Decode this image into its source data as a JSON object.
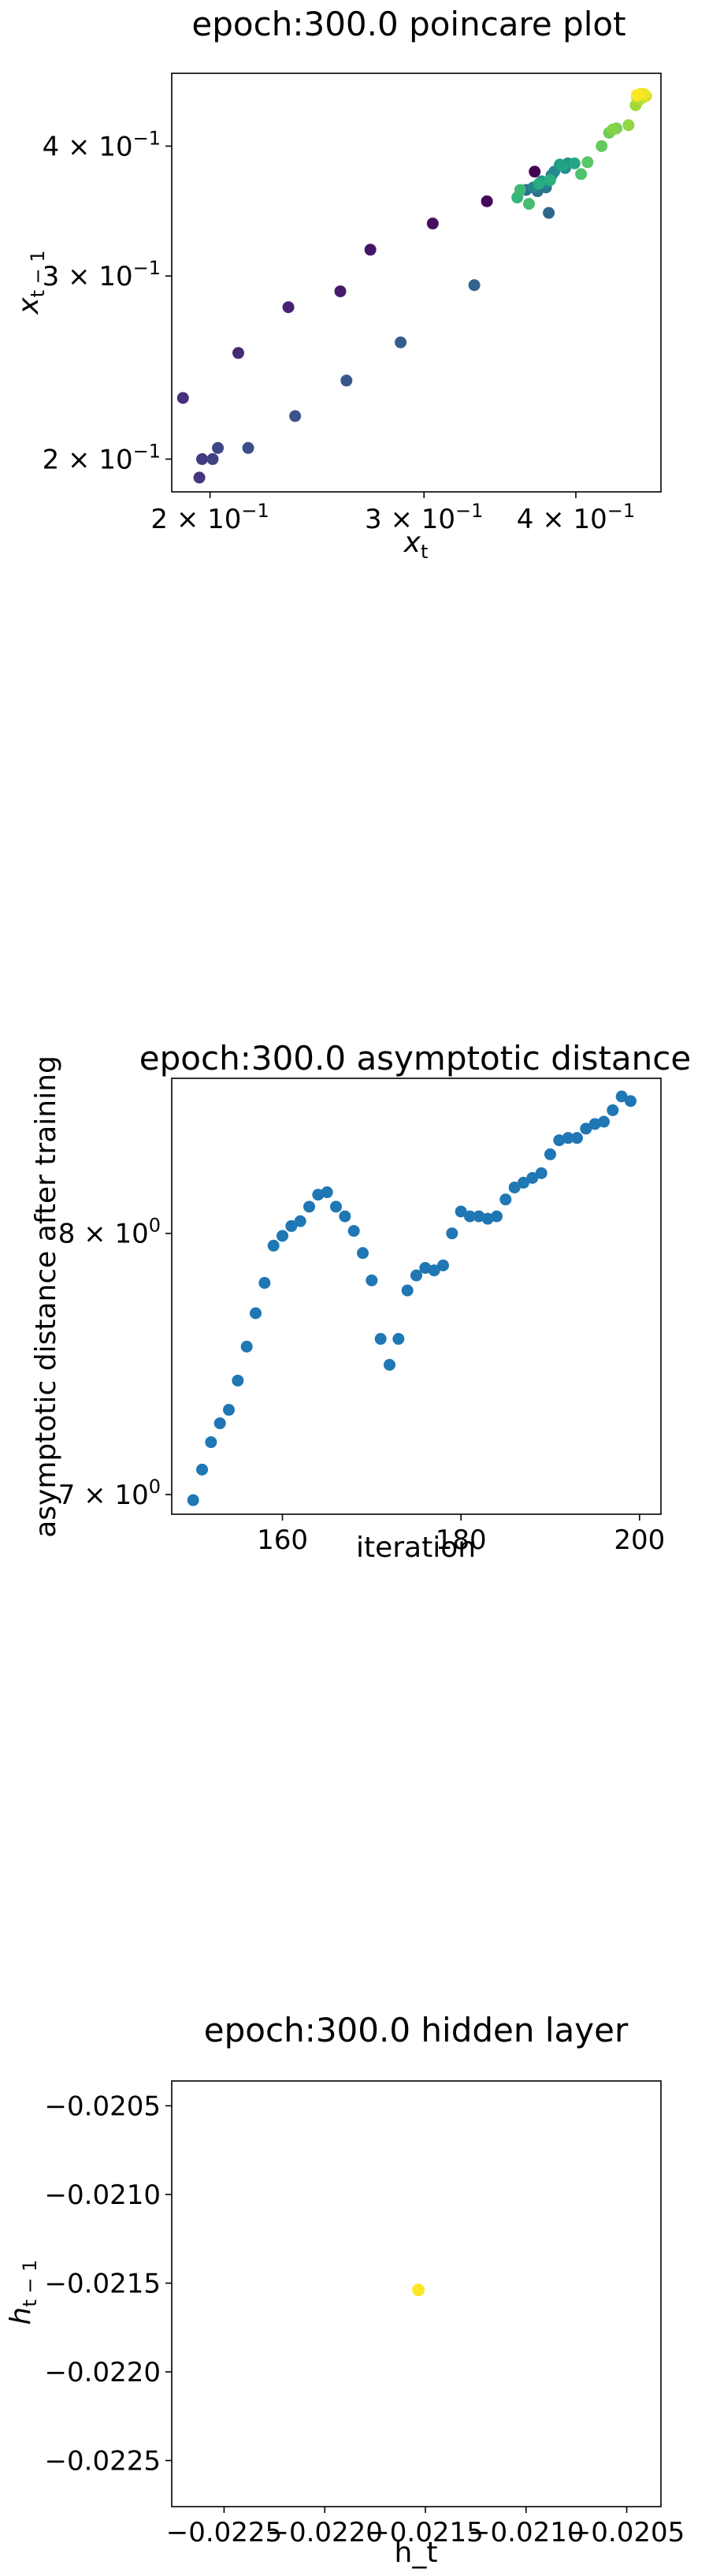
{
  "chart_data": [
    {
      "type": "scatter",
      "title": "epoch:300.0 poincare plot",
      "xlabel_base": "x",
      "xlabel_sub": "t",
      "ylabel_base": "x",
      "ylabel_sub": "t − 1",
      "xscale": "log",
      "yscale": "log",
      "xlim": [
        0.186,
        0.47
      ],
      "ylim": [
        0.186,
        0.47
      ],
      "grid": false,
      "colormap": "viridis",
      "x_ticks": [
        {
          "value": 0.2,
          "mantissa": "2",
          "base": "10",
          "exp": "−1"
        },
        {
          "value": 0.3,
          "mantissa": "3",
          "base": "10",
          "exp": "−1"
        },
        {
          "value": 0.4,
          "mantissa": "4",
          "base": "10",
          "exp": "−1"
        }
      ],
      "y_ticks": [
        {
          "value": 0.2,
          "mantissa": "2",
          "base": "10",
          "exp": "−1"
        },
        {
          "value": 0.3,
          "mantissa": "3",
          "base": "10",
          "exp": "−1"
        },
        {
          "value": 0.4,
          "mantissa": "4",
          "base": "10",
          "exp": "−1"
        }
      ],
      "points": [
        {
          "x": 0.37,
          "y": 0.378,
          "c": 0.0
        },
        {
          "x": 0.338,
          "y": 0.354,
          "c": 0.02
        },
        {
          "x": 0.305,
          "y": 0.337,
          "c": 0.04
        },
        {
          "x": 0.271,
          "y": 0.318,
          "c": 0.06
        },
        {
          "x": 0.256,
          "y": 0.29,
          "c": 0.08
        },
        {
          "x": 0.232,
          "y": 0.28,
          "c": 0.1
        },
        {
          "x": 0.211,
          "y": 0.253,
          "c": 0.12
        },
        {
          "x": 0.19,
          "y": 0.229,
          "c": 0.14
        },
        {
          "x": 0.196,
          "y": 0.192,
          "c": 0.16
        },
        {
          "x": 0.197,
          "y": 0.2,
          "c": 0.18
        },
        {
          "x": 0.201,
          "y": 0.2,
          "c": 0.2
        },
        {
          "x": 0.203,
          "y": 0.205,
          "c": 0.22
        },
        {
          "x": 0.215,
          "y": 0.205,
          "c": 0.24
        },
        {
          "x": 0.235,
          "y": 0.22,
          "c": 0.26
        },
        {
          "x": 0.259,
          "y": 0.238,
          "c": 0.28
        },
        {
          "x": 0.287,
          "y": 0.259,
          "c": 0.3
        },
        {
          "x": 0.33,
          "y": 0.294,
          "c": 0.32
        },
        {
          "x": 0.38,
          "y": 0.345,
          "c": 0.34
        },
        {
          "x": 0.364,
          "y": 0.363,
          "c": 0.36
        },
        {
          "x": 0.372,
          "y": 0.362,
          "c": 0.38
        },
        {
          "x": 0.378,
          "y": 0.365,
          "c": 0.4
        },
        {
          "x": 0.382,
          "y": 0.375,
          "c": 0.42
        },
        {
          "x": 0.377,
          "y": 0.369,
          "c": 0.44
        },
        {
          "x": 0.369,
          "y": 0.365,
          "c": 0.46
        },
        {
          "x": 0.384,
          "y": 0.378,
          "c": 0.48
        },
        {
          "x": 0.392,
          "y": 0.381,
          "c": 0.5
        },
        {
          "x": 0.394,
          "y": 0.385,
          "c": 0.52
        },
        {
          "x": 0.375,
          "y": 0.37,
          "c": 0.54
        },
        {
          "x": 0.388,
          "y": 0.384,
          "c": 0.56
        },
        {
          "x": 0.39,
          "y": 0.383,
          "c": 0.58
        },
        {
          "x": 0.399,
          "y": 0.385,
          "c": 0.6
        },
        {
          "x": 0.373,
          "y": 0.368,
          "c": 0.62
        },
        {
          "x": 0.381,
          "y": 0.371,
          "c": 0.64
        },
        {
          "x": 0.358,
          "y": 0.357,
          "c": 0.66
        },
        {
          "x": 0.36,
          "y": 0.363,
          "c": 0.68
        },
        {
          "x": 0.366,
          "y": 0.352,
          "c": 0.7
        },
        {
          "x": 0.404,
          "y": 0.376,
          "c": 0.72
        },
        {
          "x": 0.409,
          "y": 0.386,
          "c": 0.74
        },
        {
          "x": 0.42,
          "y": 0.4,
          "c": 0.76
        },
        {
          "x": 0.426,
          "y": 0.412,
          "c": 0.78
        },
        {
          "x": 0.432,
          "y": 0.416,
          "c": 0.8
        },
        {
          "x": 0.429,
          "y": 0.415,
          "c": 0.82
        },
        {
          "x": 0.442,
          "y": 0.419,
          "c": 0.84
        },
        {
          "x": 0.448,
          "y": 0.438,
          "c": 0.86
        },
        {
          "x": 0.451,
          "y": 0.443,
          "c": 0.88
        },
        {
          "x": 0.455,
          "y": 0.446,
          "c": 0.9
        },
        {
          "x": 0.449,
          "y": 0.446,
          "c": 0.92
        },
        {
          "x": 0.457,
          "y": 0.447,
          "c": 0.94
        },
        {
          "x": 0.452,
          "y": 0.449,
          "c": 0.96
        },
        {
          "x": 0.455,
          "y": 0.449,
          "c": 0.98
        },
        {
          "x": 0.449,
          "y": 0.448,
          "c": 1.0
        }
      ]
    },
    {
      "type": "scatter",
      "title": "epoch:300.0 asymptotic distance",
      "xlabel": "iteration",
      "ylabel": "asymptotic distance after training",
      "yscale": "log",
      "xlim": [
        147.6,
        202.4
      ],
      "ylim": [
        6.93,
        8.66
      ],
      "grid": false,
      "marker_color": "#1f77b4",
      "x_ticks": [
        {
          "value": 160,
          "label": "160"
        },
        {
          "value": 180,
          "label": "180"
        },
        {
          "value": 200,
          "label": "200"
        }
      ],
      "y_ticks": [
        {
          "value": 7,
          "mantissa": "7",
          "base": "10",
          "exp": "0"
        },
        {
          "value": 8,
          "mantissa": "8",
          "base": "10",
          "exp": "0"
        }
      ],
      "x": [
        150,
        151,
        152,
        153,
        154,
        155,
        156,
        157,
        158,
        159,
        160,
        161,
        162,
        163,
        164,
        165,
        166,
        167,
        168,
        169,
        170,
        171,
        172,
        173,
        174,
        175,
        176,
        177,
        178,
        179,
        180,
        181,
        182,
        183,
        184,
        185,
        186,
        187,
        188,
        189,
        190,
        191,
        192,
        193,
        194,
        195,
        196,
        197,
        198,
        199
      ],
      "y": [
        6.98,
        7.09,
        7.19,
        7.26,
        7.31,
        7.42,
        7.55,
        7.68,
        7.8,
        7.95,
        7.99,
        8.03,
        8.05,
        8.11,
        8.16,
        8.17,
        8.11,
        8.07,
        8.01,
        7.92,
        7.81,
        7.58,
        7.48,
        7.58,
        7.77,
        7.83,
        7.86,
        7.85,
        7.87,
        8.0,
        8.09,
        8.07,
        8.07,
        8.06,
        8.07,
        8.14,
        8.19,
        8.21,
        8.23,
        8.25,
        8.33,
        8.39,
        8.4,
        8.4,
        8.44,
        8.46,
        8.47,
        8.52,
        8.58,
        8.56
      ]
    },
    {
      "type": "scatter",
      "title": "epoch:300.0 hidden layer",
      "xlabel": "h_t",
      "ylabel_base": "h",
      "ylabel_sub": "t − 1",
      "xlim": [
        -0.02276,
        -0.02033
      ],
      "ylim": [
        -0.02276,
        -0.02036
      ],
      "grid": false,
      "x_ticks": [
        {
          "value": -0.0225,
          "label": "−0.0225"
        },
        {
          "value": -0.022,
          "label": "−0.0220"
        },
        {
          "value": -0.0215,
          "label": "−0.0215"
        },
        {
          "value": -0.021,
          "label": "−0.0210"
        },
        {
          "value": -0.0205,
          "label": "−0.0205"
        }
      ],
      "y_ticks": [
        {
          "value": -0.0205,
          "label": "−0.0205"
        },
        {
          "value": -0.021,
          "label": "−0.0210"
        },
        {
          "value": -0.0215,
          "label": "−0.0215"
        },
        {
          "value": -0.022,
          "label": "−0.0220"
        },
        {
          "value": -0.0225,
          "label": "−0.0225"
        }
      ],
      "points": [
        {
          "x": -0.021535,
          "y": -0.021538,
          "color": "#fde725"
        }
      ]
    }
  ]
}
